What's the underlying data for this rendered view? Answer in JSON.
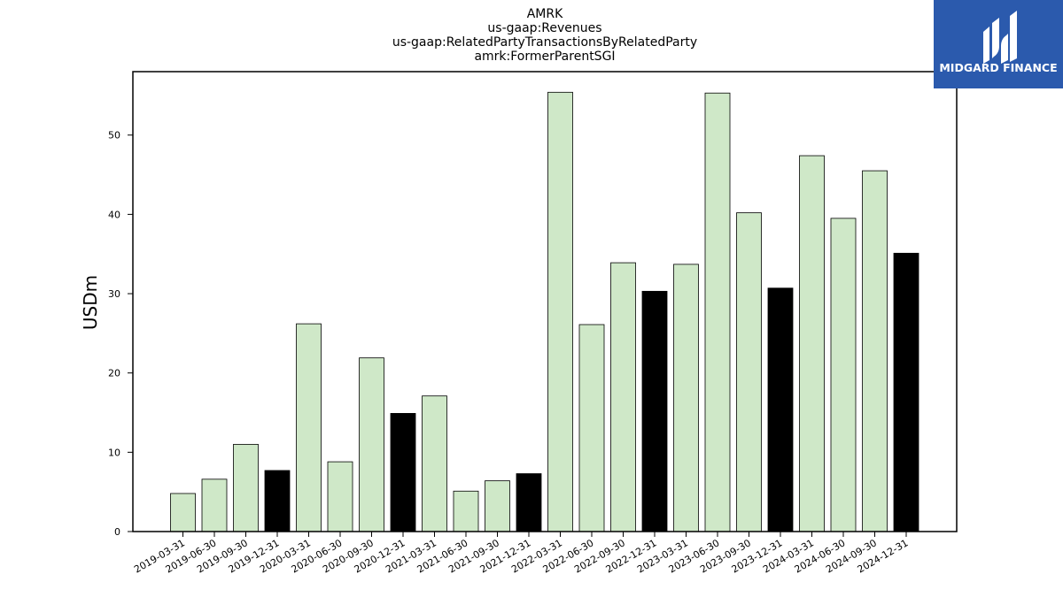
{
  "chart_data": {
    "type": "bar",
    "title_lines": [
      "AMRK",
      "us-gaap:Revenues",
      "us-gaap:RelatedPartyTransactionsByRelatedParty",
      "amrk:FormerParentSGI"
    ],
    "xlabel": "",
    "ylabel": "USDm",
    "ylim": [
      0,
      58
    ],
    "yticks": [
      0,
      10,
      20,
      30,
      40,
      50
    ],
    "grid": false,
    "categories": [
      "2019-03-31",
      "2019-06-30",
      "2019-09-30",
      "2019-12-31",
      "2020-03-31",
      "2020-06-30",
      "2020-09-30",
      "2020-12-31",
      "2021-03-31",
      "2021-06-30",
      "2021-09-30",
      "2021-12-31",
      "2022-03-31",
      "2022-06-30",
      "2022-09-30",
      "2022-12-31",
      "2023-03-31",
      "2023-06-30",
      "2023-09-30",
      "2023-12-31",
      "2024-03-31",
      "2024-06-30",
      "2024-09-30",
      "2024-12-31"
    ],
    "values": [
      4.8,
      6.6,
      11.0,
      7.7,
      26.2,
      8.8,
      21.9,
      14.9,
      17.1,
      5.1,
      6.4,
      7.3,
      55.4,
      26.1,
      33.9,
      30.3,
      33.7,
      55.3,
      40.2,
      30.7,
      47.4,
      39.5,
      45.5,
      35.1
    ],
    "colors": {
      "quarter": "#cfe8c8",
      "year_end": "#000000",
      "edge": "#000000"
    }
  },
  "logo": {
    "text": "MIDGARD FINANCE",
    "background": "#2b5aad"
  }
}
